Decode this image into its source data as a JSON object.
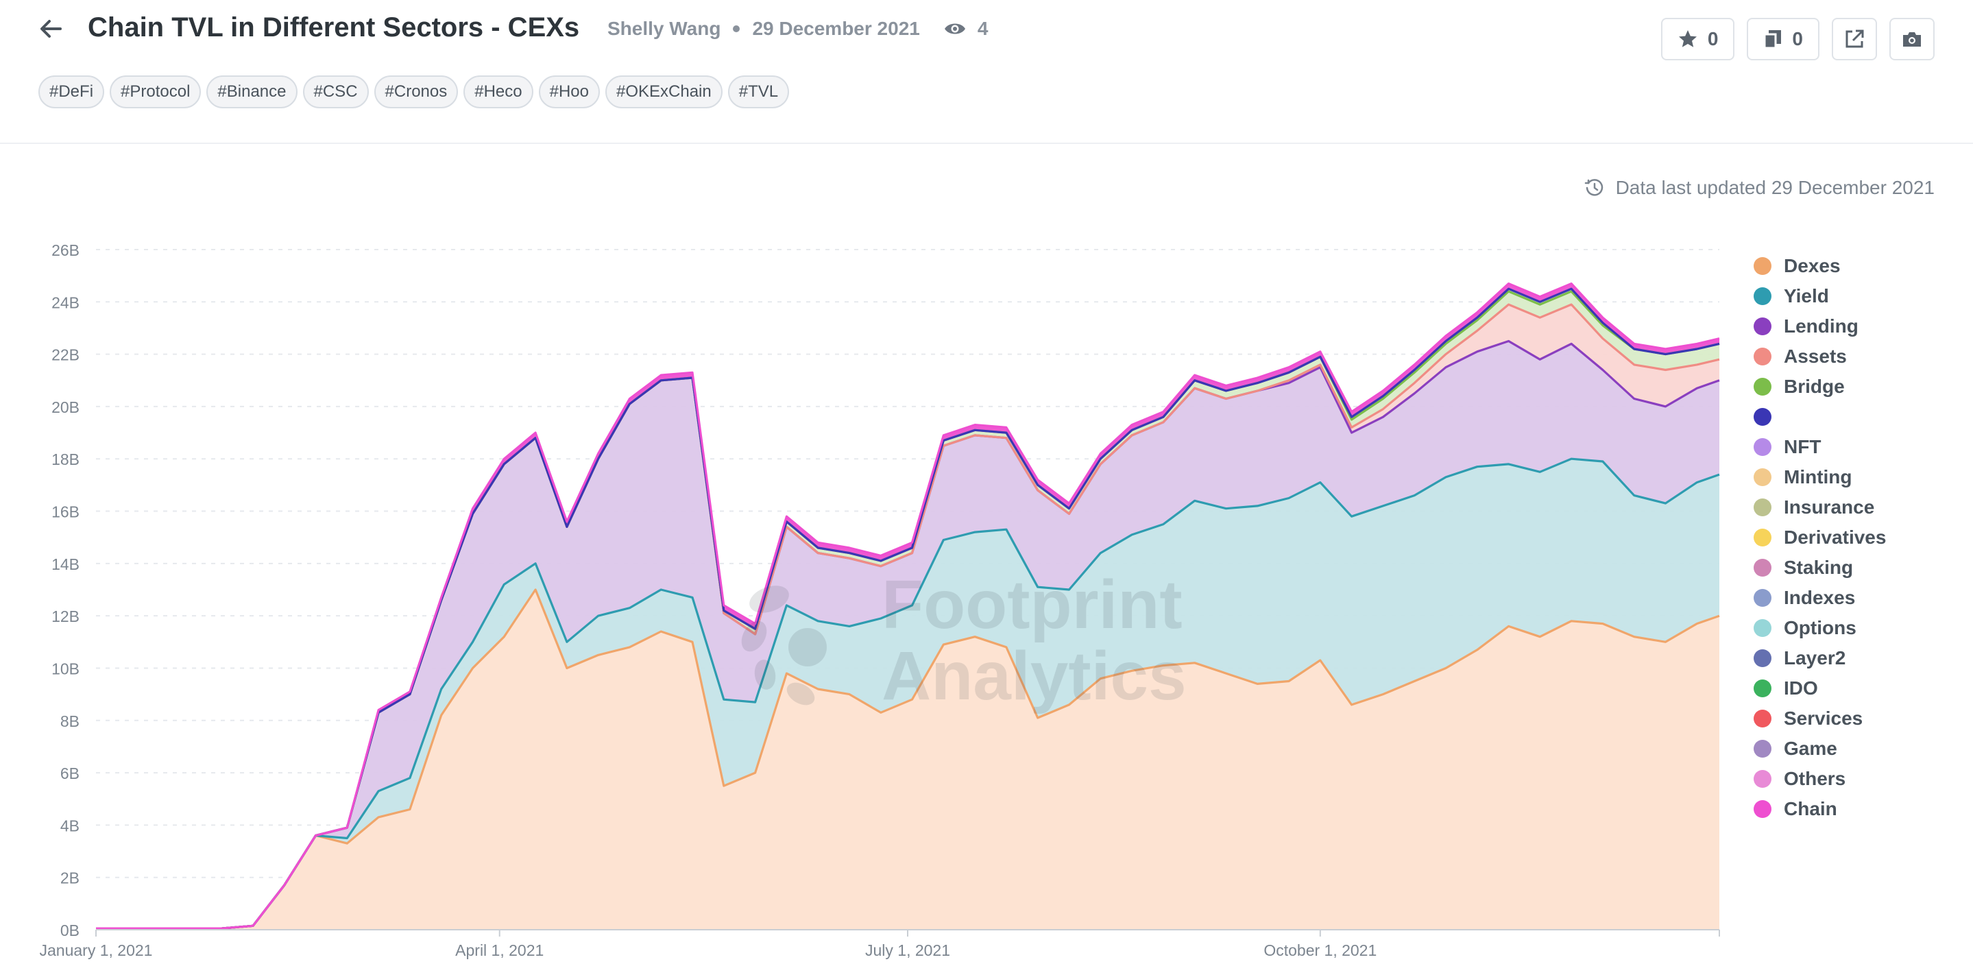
{
  "header": {
    "title": "Chain TVL in Different Sectors - CEXs",
    "author": "Shelly Wang",
    "date": "29 December 2021",
    "views": "4",
    "tags": [
      "#DeFi",
      "#Protocol",
      "#Binance",
      "#CSC",
      "#Cronos",
      "#Heco",
      "#Hoo",
      "#OKExChain",
      "#TVL"
    ],
    "favorites_count": "0",
    "copies_count": "0"
  },
  "updated_text": "Data last updated 29 December 2021",
  "watermark": {
    "line1": "Footprint",
    "line2": "Analytics"
  },
  "icons": {
    "back": "arrow-left-icon",
    "views": "eye-icon",
    "favorite": "star-icon",
    "copy": "copy-icon",
    "share": "external-link-icon",
    "snapshot": "camera-icon",
    "updated": "clock-icon"
  },
  "chart_data": {
    "type": "area",
    "stacked": true,
    "x": [
      "2021-01-01",
      "2021-01-15",
      "2021-01-29",
      "2021-02-05",
      "2021-02-12",
      "2021-02-19",
      "2021-02-26",
      "2021-03-05",
      "2021-03-12",
      "2021-03-19",
      "2021-03-26",
      "2021-04-02",
      "2021-04-09",
      "2021-04-16",
      "2021-04-23",
      "2021-04-30",
      "2021-05-07",
      "2021-05-14",
      "2021-05-21",
      "2021-05-28",
      "2021-06-04",
      "2021-06-11",
      "2021-06-18",
      "2021-06-25",
      "2021-07-02",
      "2021-07-09",
      "2021-07-16",
      "2021-07-23",
      "2021-07-30",
      "2021-08-06",
      "2021-08-13",
      "2021-08-20",
      "2021-08-27",
      "2021-09-03",
      "2021-09-10",
      "2021-09-17",
      "2021-09-24",
      "2021-10-01",
      "2021-10-08",
      "2021-10-15",
      "2021-10-22",
      "2021-10-29",
      "2021-11-05",
      "2021-11-12",
      "2021-11-19",
      "2021-11-26",
      "2021-12-03",
      "2021-12-10",
      "2021-12-17",
      "2021-12-24",
      "2021-12-29"
    ],
    "series": [
      {
        "name": "Dexes",
        "values": [
          0.05,
          0.05,
          0.05,
          0.15,
          1.7,
          3.6,
          3.3,
          4.3,
          4.6,
          8.2,
          10.0,
          11.2,
          13.0,
          10.0,
          10.5,
          10.8,
          11.4,
          11.0,
          5.5,
          6.0,
          9.8,
          9.2,
          9.0,
          8.3,
          8.8,
          10.9,
          11.2,
          10.8,
          8.1,
          8.6,
          9.6,
          9.9,
          10.1,
          10.2,
          9.8,
          9.4,
          9.5,
          10.3,
          8.6,
          9.0,
          9.5,
          10.0,
          10.7,
          11.6,
          11.2,
          11.8,
          11.7,
          11.2,
          11.0,
          11.7,
          12.0
        ]
      },
      {
        "name": "Yield",
        "values": [
          0.0,
          0.0,
          0.0,
          0.0,
          0.0,
          0.0,
          0.2,
          1.0,
          1.2,
          1.0,
          1.0,
          2.0,
          1.0,
          1.0,
          1.5,
          1.5,
          1.6,
          1.7,
          3.3,
          2.7,
          2.6,
          2.6,
          2.6,
          3.6,
          3.6,
          4.0,
          4.0,
          4.5,
          5.0,
          4.4,
          4.8,
          5.2,
          5.4,
          6.2,
          6.3,
          6.8,
          7.0,
          6.8,
          7.2,
          7.2,
          7.1,
          7.3,
          7.0,
          6.2,
          6.3,
          6.2,
          6.2,
          5.4,
          5.3,
          5.4,
          5.4
        ]
      },
      {
        "name": "Lending",
        "values": [
          0.0,
          0.0,
          0.0,
          0.0,
          0.0,
          0.0,
          0.4,
          3.0,
          3.2,
          3.4,
          4.9,
          4.6,
          4.8,
          4.4,
          6.0,
          7.8,
          8.0,
          8.4,
          3.3,
          2.6,
          3.0,
          2.6,
          2.6,
          2.0,
          2.0,
          3.6,
          3.7,
          3.5,
          3.7,
          2.9,
          3.4,
          3.8,
          3.9,
          4.3,
          4.2,
          4.4,
          4.4,
          4.4,
          3.2,
          3.4,
          3.9,
          4.2,
          4.4,
          4.7,
          4.3,
          4.4,
          3.5,
          3.7,
          3.7,
          3.6,
          3.6
        ]
      },
      {
        "name": "Assets",
        "values": [
          0.0,
          0.0,
          0.0,
          0.0,
          0.0,
          0.0,
          0.0,
          0.0,
          0.0,
          0.0,
          0.0,
          0.0,
          0.0,
          0.0,
          0.0,
          0.0,
          0.0,
          0.0,
          0.0,
          0.0,
          0.0,
          0.0,
          0.0,
          0.0,
          0.0,
          0.0,
          0.0,
          0.0,
          0.0,
          0.0,
          0.0,
          0.0,
          0.0,
          0.0,
          0.0,
          0.0,
          0.1,
          0.1,
          0.2,
          0.3,
          0.4,
          0.5,
          0.8,
          1.4,
          1.6,
          1.5,
          1.2,
          1.3,
          1.4,
          0.9,
          0.8
        ]
      },
      {
        "name": "Bridge",
        "values": [
          0.0,
          0.0,
          0.0,
          0.0,
          0.0,
          0.0,
          0.0,
          0.0,
          0.0,
          0.0,
          0.0,
          0.0,
          0.0,
          0.0,
          0.0,
          0.0,
          0.0,
          0.0,
          0.1,
          0.2,
          0.2,
          0.2,
          0.2,
          0.2,
          0.2,
          0.2,
          0.2,
          0.2,
          0.2,
          0.2,
          0.2,
          0.2,
          0.2,
          0.3,
          0.3,
          0.3,
          0.3,
          0.3,
          0.3,
          0.4,
          0.4,
          0.4,
          0.4,
          0.5,
          0.5,
          0.5,
          0.5,
          0.6,
          0.6,
          0.6,
          0.6
        ]
      },
      {
        "name": "",
        "values": [
          0.0,
          0.0,
          0.0,
          0.0,
          0.0,
          0.0,
          0.0,
          0.0,
          0.0,
          0.0,
          0.0,
          0.0,
          0.0,
          0.0,
          0.0,
          0.0,
          0.0,
          0.0,
          0.0,
          0.0,
          0.0,
          0.0,
          0.0,
          0.0,
          0.0,
          0.0,
          0.0,
          0.0,
          0.0,
          0.0,
          0.0,
          0.0,
          0.0,
          0.0,
          0.0,
          0.0,
          0.0,
          0.0,
          0.1,
          0.1,
          0.1,
          0.1,
          0.1,
          0.1,
          0.1,
          0.1,
          0.1,
          0.0,
          0.0,
          0.0,
          0.0
        ]
      },
      {
        "name": "NFT",
        "values": [
          0.0,
          0.0,
          0.0,
          0.0,
          0.0,
          0.0,
          0.0,
          0.0,
          0.0,
          0.0,
          0.0,
          0.0,
          0.0,
          0.0,
          0.0,
          0.0,
          0.0,
          0.0,
          0.0,
          0.0,
          0.0,
          0.0,
          0.0,
          0.0,
          0.0,
          0.0,
          0.0,
          0.0,
          0.0,
          0.0,
          0.0,
          0.0,
          0.0,
          0.0,
          0.0,
          0.0,
          0.0,
          0.0,
          0.0,
          0.0,
          0.0,
          0.0,
          0.0,
          0.0,
          0.0,
          0.0,
          0.0,
          0.0,
          0.0,
          0.0,
          0.0
        ]
      },
      {
        "name": "Minting",
        "values": [
          0.0,
          0.0,
          0.0,
          0.0,
          0.0,
          0.0,
          0.0,
          0.0,
          0.0,
          0.0,
          0.0,
          0.0,
          0.0,
          0.0,
          0.0,
          0.0,
          0.0,
          0.0,
          0.0,
          0.0,
          0.0,
          0.0,
          0.0,
          0.0,
          0.0,
          0.0,
          0.0,
          0.0,
          0.0,
          0.0,
          0.0,
          0.0,
          0.0,
          0.0,
          0.0,
          0.0,
          0.0,
          0.0,
          0.0,
          0.0,
          0.0,
          0.0,
          0.0,
          0.0,
          0.0,
          0.0,
          0.0,
          0.0,
          0.0,
          0.0,
          0.0
        ]
      },
      {
        "name": "Insurance",
        "values": [
          0.0,
          0.0,
          0.0,
          0.0,
          0.0,
          0.0,
          0.0,
          0.0,
          0.0,
          0.0,
          0.0,
          0.0,
          0.0,
          0.0,
          0.0,
          0.0,
          0.0,
          0.0,
          0.0,
          0.0,
          0.0,
          0.0,
          0.0,
          0.0,
          0.0,
          0.0,
          0.0,
          0.0,
          0.0,
          0.0,
          0.0,
          0.0,
          0.0,
          0.0,
          0.0,
          0.0,
          0.0,
          0.0,
          0.0,
          0.0,
          0.0,
          0.0,
          0.0,
          0.0,
          0.0,
          0.0,
          0.0,
          0.0,
          0.0,
          0.0,
          0.0
        ]
      },
      {
        "name": "Derivatives",
        "values": [
          0.0,
          0.0,
          0.0,
          0.0,
          0.0,
          0.0,
          0.0,
          0.0,
          0.0,
          0.0,
          0.0,
          0.0,
          0.0,
          0.0,
          0.0,
          0.0,
          0.0,
          0.0,
          0.0,
          0.0,
          0.0,
          0.0,
          0.0,
          0.0,
          0.0,
          0.0,
          0.0,
          0.0,
          0.0,
          0.0,
          0.0,
          0.0,
          0.0,
          0.0,
          0.0,
          0.0,
          0.0,
          0.0,
          0.0,
          0.0,
          0.0,
          0.0,
          0.0,
          0.0,
          0.0,
          0.0,
          0.0,
          0.0,
          0.0,
          0.0,
          0.0
        ]
      },
      {
        "name": "Staking",
        "values": [
          0.0,
          0.0,
          0.0,
          0.0,
          0.0,
          0.0,
          0.0,
          0.0,
          0.0,
          0.0,
          0.0,
          0.0,
          0.0,
          0.0,
          0.0,
          0.0,
          0.0,
          0.0,
          0.0,
          0.0,
          0.0,
          0.0,
          0.0,
          0.0,
          0.0,
          0.0,
          0.0,
          0.0,
          0.0,
          0.0,
          0.0,
          0.0,
          0.0,
          0.0,
          0.0,
          0.0,
          0.0,
          0.0,
          0.0,
          0.0,
          0.0,
          0.0,
          0.0,
          0.0,
          0.0,
          0.0,
          0.0,
          0.0,
          0.0,
          0.0,
          0.0
        ]
      },
      {
        "name": "Indexes",
        "values": [
          0.0,
          0.0,
          0.0,
          0.0,
          0.0,
          0.0,
          0.0,
          0.0,
          0.0,
          0.0,
          0.0,
          0.0,
          0.0,
          0.0,
          0.0,
          0.0,
          0.0,
          0.0,
          0.0,
          0.0,
          0.0,
          0.0,
          0.0,
          0.0,
          0.0,
          0.0,
          0.0,
          0.0,
          0.0,
          0.0,
          0.0,
          0.0,
          0.0,
          0.0,
          0.0,
          0.0,
          0.0,
          0.0,
          0.0,
          0.0,
          0.0,
          0.0,
          0.0,
          0.0,
          0.0,
          0.0,
          0.0,
          0.0,
          0.0,
          0.0,
          0.0
        ]
      },
      {
        "name": "Options",
        "values": [
          0.0,
          0.0,
          0.0,
          0.0,
          0.0,
          0.0,
          0.0,
          0.0,
          0.0,
          0.0,
          0.0,
          0.0,
          0.0,
          0.0,
          0.0,
          0.0,
          0.0,
          0.0,
          0.0,
          0.0,
          0.0,
          0.0,
          0.0,
          0.0,
          0.0,
          0.0,
          0.0,
          0.0,
          0.0,
          0.0,
          0.0,
          0.0,
          0.0,
          0.0,
          0.0,
          0.0,
          0.0,
          0.0,
          0.0,
          0.0,
          0.0,
          0.0,
          0.0,
          0.0,
          0.0,
          0.0,
          0.0,
          0.0,
          0.0,
          0.0,
          0.0
        ]
      },
      {
        "name": "Layer2",
        "values": [
          0.0,
          0.0,
          0.0,
          0.0,
          0.0,
          0.0,
          0.0,
          0.0,
          0.0,
          0.0,
          0.0,
          0.0,
          0.0,
          0.0,
          0.0,
          0.0,
          0.0,
          0.0,
          0.0,
          0.0,
          0.0,
          0.0,
          0.0,
          0.0,
          0.0,
          0.0,
          0.0,
          0.0,
          0.0,
          0.0,
          0.0,
          0.0,
          0.0,
          0.0,
          0.0,
          0.0,
          0.0,
          0.0,
          0.0,
          0.0,
          0.0,
          0.0,
          0.0,
          0.0,
          0.0,
          0.0,
          0.0,
          0.0,
          0.0,
          0.0,
          0.0
        ]
      },
      {
        "name": "IDO",
        "values": [
          0.0,
          0.0,
          0.0,
          0.0,
          0.0,
          0.0,
          0.0,
          0.0,
          0.0,
          0.0,
          0.0,
          0.0,
          0.0,
          0.0,
          0.0,
          0.0,
          0.0,
          0.0,
          0.0,
          0.0,
          0.0,
          0.0,
          0.0,
          0.0,
          0.0,
          0.0,
          0.0,
          0.0,
          0.0,
          0.0,
          0.0,
          0.0,
          0.0,
          0.0,
          0.0,
          0.0,
          0.0,
          0.0,
          0.0,
          0.0,
          0.0,
          0.0,
          0.0,
          0.0,
          0.0,
          0.0,
          0.0,
          0.0,
          0.0,
          0.0,
          0.0
        ]
      },
      {
        "name": "Services",
        "values": [
          0.0,
          0.0,
          0.0,
          0.0,
          0.0,
          0.0,
          0.0,
          0.0,
          0.0,
          0.0,
          0.0,
          0.0,
          0.0,
          0.0,
          0.0,
          0.0,
          0.0,
          0.0,
          0.0,
          0.0,
          0.0,
          0.0,
          0.0,
          0.0,
          0.0,
          0.0,
          0.0,
          0.0,
          0.0,
          0.0,
          0.0,
          0.0,
          0.0,
          0.0,
          0.0,
          0.0,
          0.0,
          0.0,
          0.0,
          0.0,
          0.0,
          0.0,
          0.0,
          0.0,
          0.0,
          0.0,
          0.0,
          0.0,
          0.0,
          0.0,
          0.0
        ]
      },
      {
        "name": "Game",
        "values": [
          0.0,
          0.0,
          0.0,
          0.0,
          0.0,
          0.0,
          0.0,
          0.0,
          0.0,
          0.0,
          0.0,
          0.0,
          0.0,
          0.0,
          0.0,
          0.0,
          0.0,
          0.0,
          0.0,
          0.0,
          0.0,
          0.0,
          0.0,
          0.0,
          0.0,
          0.0,
          0.0,
          0.0,
          0.0,
          0.0,
          0.0,
          0.0,
          0.0,
          0.0,
          0.0,
          0.0,
          0.0,
          0.0,
          0.0,
          0.0,
          0.0,
          0.0,
          0.0,
          0.0,
          0.0,
          0.0,
          0.0,
          0.0,
          0.0,
          0.0,
          0.0
        ]
      },
      {
        "name": "Others",
        "values": [
          0.0,
          0.0,
          0.0,
          0.0,
          0.0,
          0.0,
          0.0,
          0.0,
          0.0,
          0.0,
          0.0,
          0.0,
          0.0,
          0.0,
          0.0,
          0.0,
          0.0,
          0.0,
          0.0,
          0.0,
          0.0,
          0.0,
          0.0,
          0.0,
          0.0,
          0.0,
          0.0,
          0.0,
          0.0,
          0.0,
          0.0,
          0.0,
          0.0,
          0.0,
          0.0,
          0.0,
          0.0,
          0.0,
          0.0,
          0.0,
          0.0,
          0.0,
          0.0,
          0.0,
          0.0,
          0.0,
          0.0,
          0.0,
          0.0,
          0.0,
          0.0
        ]
      },
      {
        "name": "Chain",
        "values": [
          0.0,
          0.0,
          0.0,
          0.0,
          0.0,
          0.0,
          0.0,
          0.1,
          0.1,
          0.1,
          0.2,
          0.2,
          0.2,
          0.2,
          0.2,
          0.2,
          0.2,
          0.2,
          0.2,
          0.2,
          0.2,
          0.2,
          0.2,
          0.2,
          0.2,
          0.2,
          0.2,
          0.2,
          0.2,
          0.2,
          0.2,
          0.2,
          0.2,
          0.2,
          0.2,
          0.2,
          0.2,
          0.2,
          0.2,
          0.2,
          0.2,
          0.2,
          0.2,
          0.2,
          0.2,
          0.2,
          0.2,
          0.2,
          0.2,
          0.2,
          0.2
        ]
      }
    ],
    "colors": [
      "#f0a56a",
      "#2e9cb0",
      "#8a3fbf",
      "#f08c84",
      "#7cbd4a",
      "#3a36b4",
      "#b58ae8",
      "#f2c98b",
      "#bcc28e",
      "#f7d35a",
      "#cf84b4",
      "#8a9ccc",
      "#96d6d8",
      "#6470b0",
      "#3bb25e",
      "#f0585e",
      "#a088c2",
      "#e88ad6",
      "#ee4fd0"
    ],
    "fill_colors": [
      "#fde3d2",
      "#c5e4e8",
      "#dcc7ea",
      "#fad6d3",
      "#d9ecc8",
      "#c8c6ea"
    ],
    "yticks": [
      "0B",
      "2B",
      "4B",
      "6B",
      "8B",
      "10B",
      "12B",
      "14B",
      "16B",
      "18B",
      "20B",
      "22B",
      "24B",
      "26B"
    ],
    "ylim": [
      0,
      26
    ],
    "xticks": [
      {
        "date": "2021-01-01",
        "label": "January 1, 2021"
      },
      {
        "date": "2021-04-01",
        "label": "April 1, 2021"
      },
      {
        "date": "2021-07-01",
        "label": "July 1, 2021"
      },
      {
        "date": "2021-10-01",
        "label": "October 1, 2021"
      }
    ],
    "xlim": [
      "2021-01-01",
      "2021-12-29"
    ],
    "grid": true,
    "legend_position": "right"
  }
}
